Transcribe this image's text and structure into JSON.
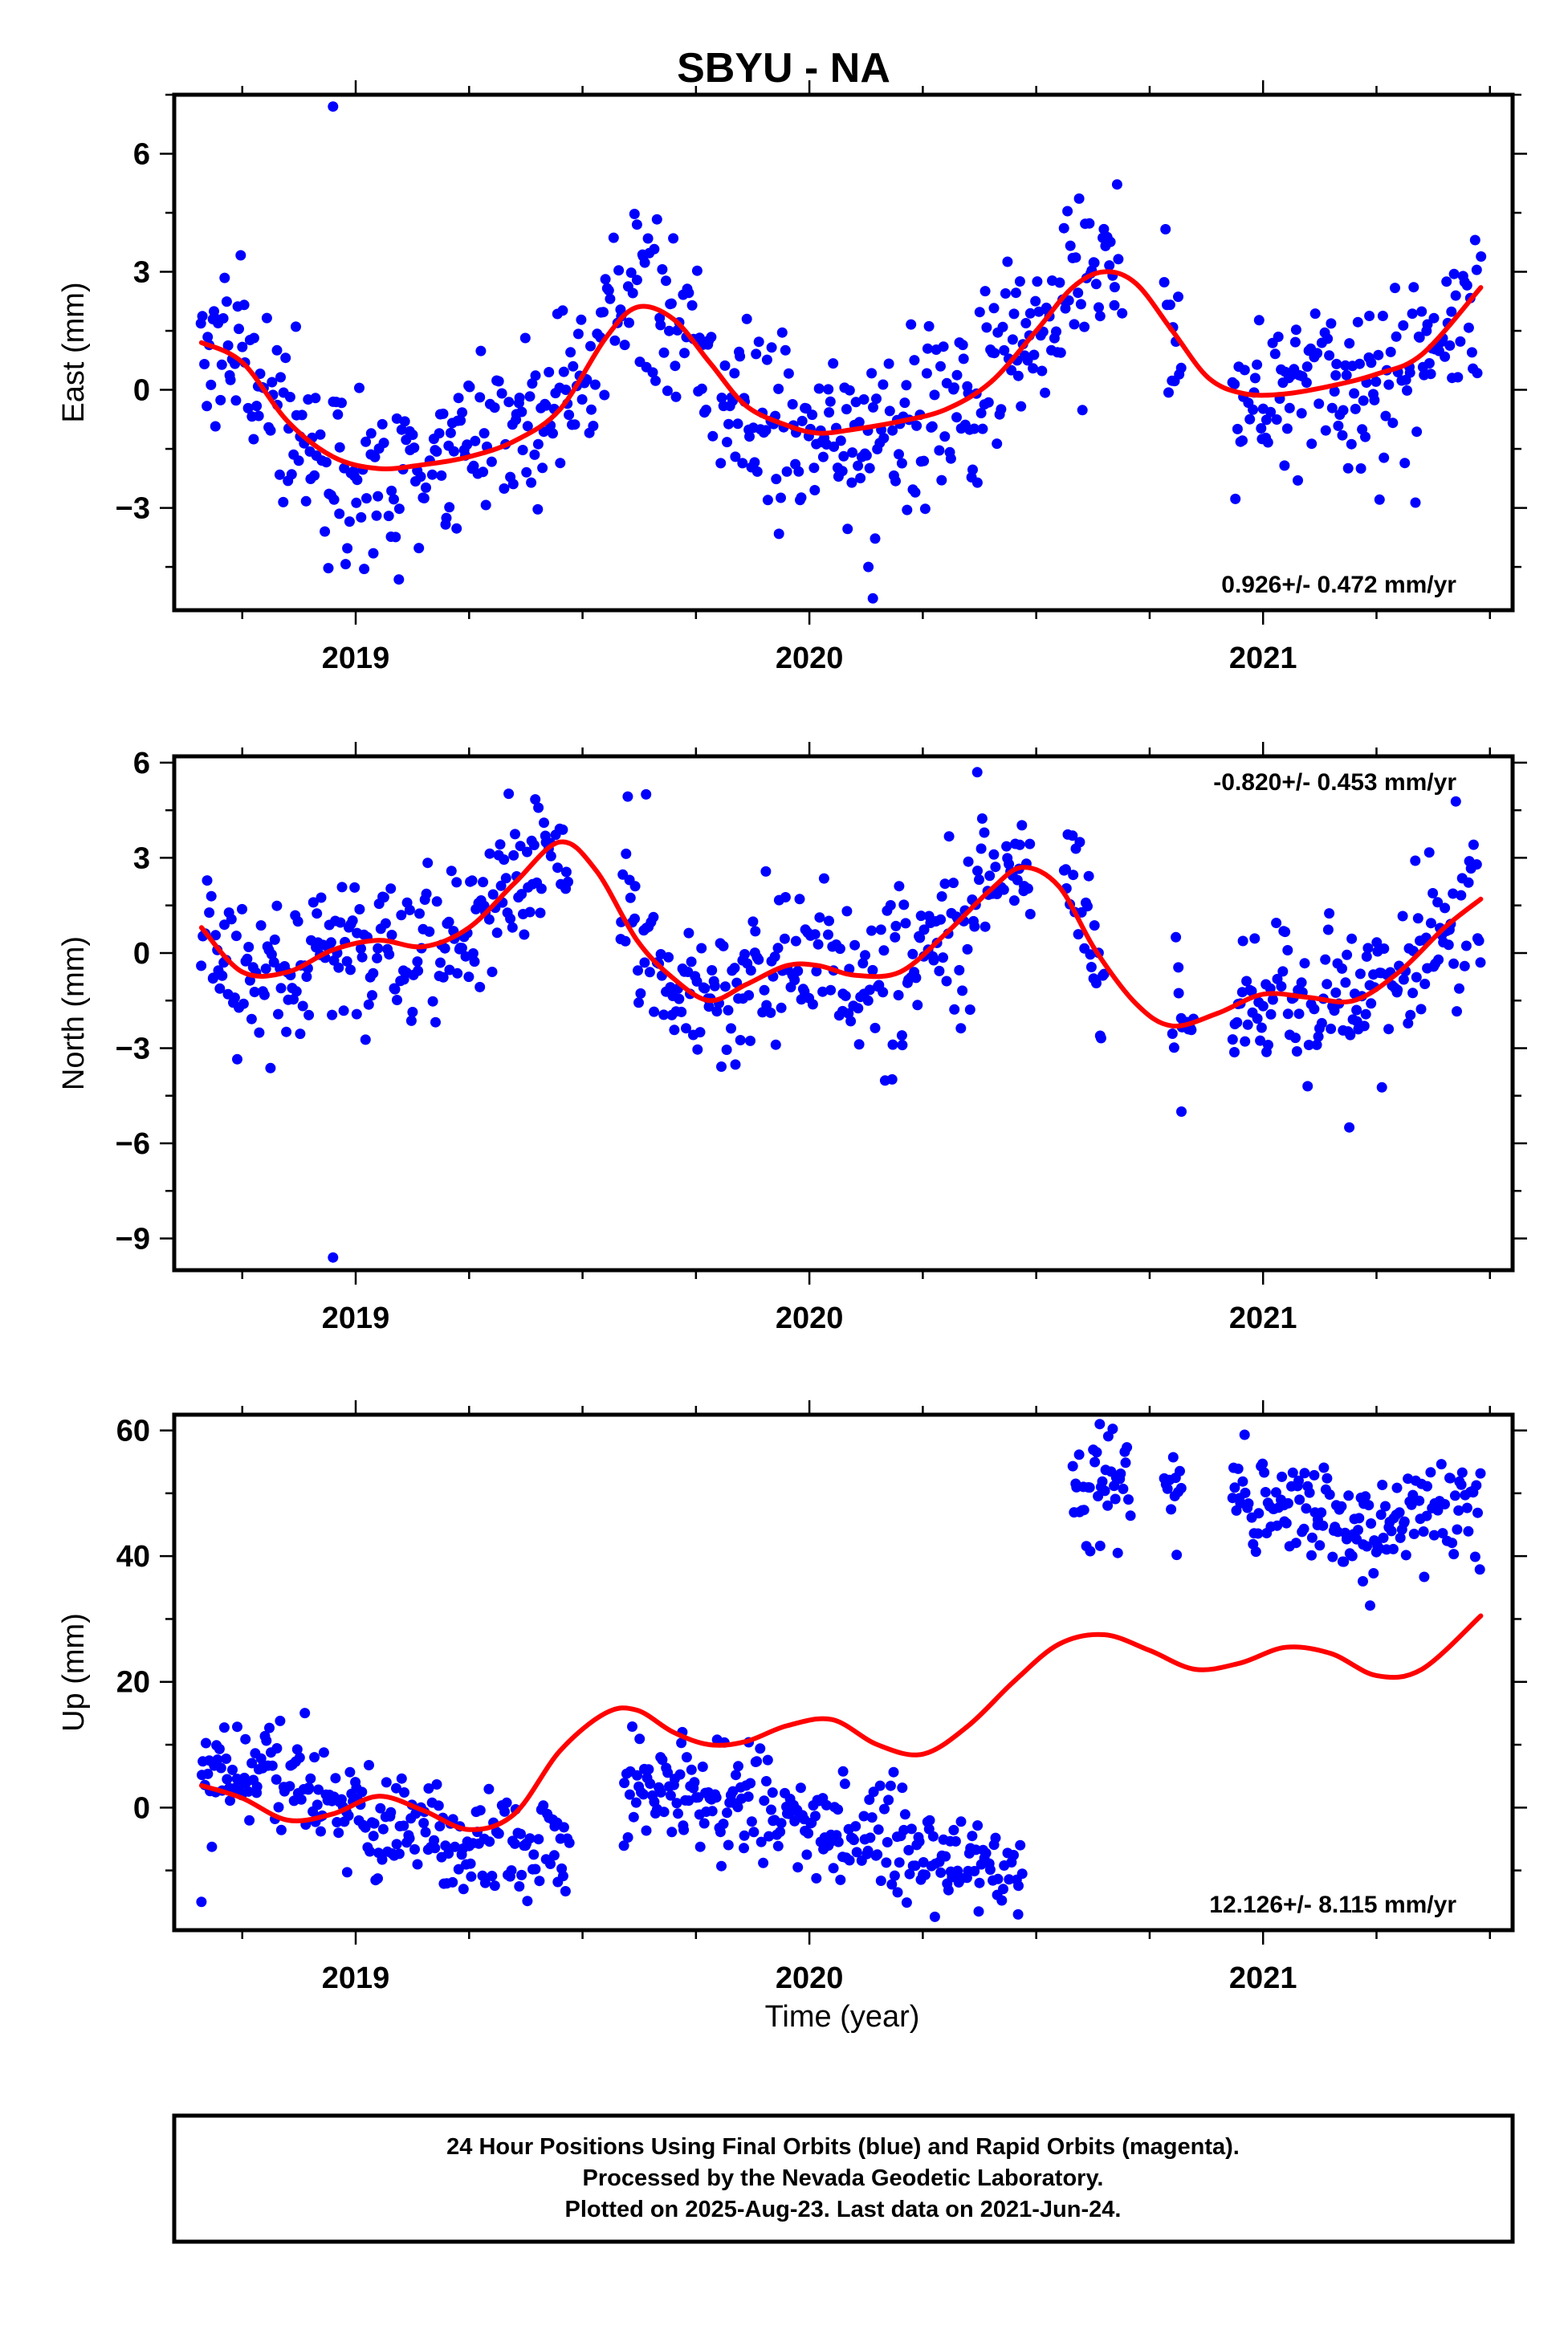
{
  "figure": {
    "title": "SBYU - NA",
    "xlabel": "Time (year)",
    "x_tick_labels": [
      "2019",
      "2020",
      "2021"
    ],
    "footer_lines": [
      "24 Hour Positions Using Final Orbits (blue) and Rapid Orbits (magenta).",
      "Processed by the Nevada Geodetic Laboratory.",
      "Plotted on 2025-Aug-23. Last data on 2021-Jun-24."
    ],
    "colors": {
      "points": "#0000ff",
      "fit": "#ff0000",
      "frame": "#000000"
    }
  },
  "chart_data": [
    {
      "type": "scatter",
      "ylabel": "East (mm)",
      "xlim": [
        2018.6,
        2021.55
      ],
      "ylim": [
        -5.6,
        7.5
      ],
      "yticks": [
        -3,
        0,
        3,
        6
      ],
      "ytick_labels": [
        "−3",
        "0",
        "3",
        "6"
      ],
      "rate_text": "0.926+/- 0.472 mm/yr",
      "rate_position": "bottom-right",
      "points": {
        "generator": "seeded-scatter-around-fit",
        "data_start": 2018.66,
        "data_end": 2021.48,
        "spread": 1.1,
        "gaps": [
          [
            2019.79,
            2019.8
          ],
          [
            2020.69,
            2020.78
          ],
          [
            2020.82,
            2020.93
          ]
        ],
        "outliers": [
          [
            2018.95,
            7.2
          ],
          [
            2020.14,
            -5.3
          ],
          [
            2020.13,
            -4.5
          ],
          [
            2019.62,
            4.2
          ]
        ]
      },
      "fit": {
        "x": [
          2018.66,
          2018.75,
          2018.85,
          2018.95,
          2019.05,
          2019.15,
          2019.25,
          2019.35,
          2019.45,
          2019.55,
          2019.62,
          2019.7,
          2019.78,
          2019.86,
          2019.95,
          2020.02,
          2020.1,
          2020.2,
          2020.3,
          2020.4,
          2020.5,
          2020.58,
          2020.65,
          2020.72,
          2020.8,
          2020.88,
          2020.96,
          2021.05,
          2021.15,
          2021.25,
          2021.35,
          2021.48
        ],
        "y": [
          1.2,
          0.7,
          -0.8,
          -1.7,
          -2.0,
          -1.9,
          -1.7,
          -1.3,
          -0.5,
          1.3,
          2.1,
          1.8,
          0.7,
          -0.4,
          -0.9,
          -1.1,
          -1.0,
          -0.8,
          -0.5,
          0.2,
          1.5,
          2.6,
          3.0,
          2.7,
          1.5,
          0.3,
          -0.1,
          -0.1,
          0.1,
          0.4,
          0.9,
          2.6
        ]
      }
    },
    {
      "type": "scatter",
      "ylabel": "North (mm)",
      "xlim": [
        2018.6,
        2021.55
      ],
      "ylim": [
        -10.0,
        6.2
      ],
      "yticks": [
        -9,
        -6,
        -3,
        0,
        3,
        6
      ],
      "ytick_labels": [
        "−9",
        "−6",
        "−3",
        "0",
        "3",
        "6"
      ],
      "rate_text": "-0.820+/- 0.453 mm/yr",
      "rate_position": "top-right",
      "points": {
        "generator": "seeded-scatter-around-fit",
        "data_start": 2018.66,
        "data_end": 2021.48,
        "spread": 1.2,
        "gaps": [
          [
            2019.47,
            2019.58
          ],
          [
            2020.49,
            2020.56
          ],
          [
            2020.65,
            2020.8
          ],
          [
            2020.85,
            2020.93
          ]
        ],
        "outliers": [
          [
            2018.95,
            -9.6
          ],
          [
            2019.64,
            5.0
          ],
          [
            2020.37,
            5.7
          ],
          [
            2020.58,
            3.7
          ],
          [
            2020.82,
            -5.0
          ],
          [
            2021.19,
            -5.5
          ]
        ]
      },
      "fit": {
        "x": [
          2018.66,
          2018.75,
          2018.85,
          2018.95,
          2019.05,
          2019.15,
          2019.25,
          2019.35,
          2019.45,
          2019.53,
          2019.62,
          2019.7,
          2019.78,
          2019.86,
          2019.95,
          2020.02,
          2020.1,
          2020.2,
          2020.3,
          2020.4,
          2020.47,
          2020.55,
          2020.63,
          2020.72,
          2020.8,
          2020.9,
          2021.0,
          2021.1,
          2021.2,
          2021.3,
          2021.4,
          2021.48
        ],
        "y": [
          0.8,
          -0.6,
          -0.6,
          0.1,
          0.4,
          0.2,
          0.8,
          2.2,
          3.5,
          2.6,
          0.4,
          -0.8,
          -1.5,
          -1.0,
          -0.4,
          -0.4,
          -0.7,
          -0.6,
          0.6,
          2.0,
          2.7,
          2.1,
          0.1,
          -1.6,
          -2.3,
          -1.9,
          -1.3,
          -1.4,
          -1.5,
          -0.6,
          0.8,
          1.7
        ]
      }
    },
    {
      "type": "scatter",
      "ylabel": "Up (mm)",
      "xlim": [
        2018.6,
        2021.55
      ],
      "ylim": [
        -19.5,
        62.5
      ],
      "yticks": [
        0,
        20,
        40,
        60
      ],
      "ytick_labels": [
        "0",
        "20",
        "40",
        "60"
      ],
      "rate_text": "12.126+/- 8.115 mm/yr",
      "rate_position": "bottom-right",
      "points": {
        "generator": "seeded-scatter-offset-segments",
        "spread": 4.2,
        "segments": [
          {
            "x": [
              2018.66,
              2018.8,
              2018.95,
              2019.1,
              2019.25,
              2019.4,
              2019.47
            ],
            "y": [
              5,
              6,
              0,
              -3,
              -7,
              -6,
              -8
            ]
          },
          {
            "x": [
              2019.59,
              2019.72,
              2019.9,
              2020.05,
              2020.2,
              2020.35,
              2020.47
            ],
            "y": [
              1,
              2,
              0,
              -3,
              -6,
              -8,
              -10
            ]
          },
          {
            "x": [
              2020.58,
              2020.7,
              2020.8,
              2020.9,
              2021.0,
              2021.1,
              2021.2,
              2021.3,
              2021.4,
              2021.48
            ],
            "y": [
              49,
              53,
              51,
              50,
              48,
              47,
              44,
              44,
              46,
              48
            ]
          }
        ],
        "gaps": [
          [
            2020.71,
            2020.78
          ],
          [
            2020.82,
            2020.93
          ]
        ],
        "outliers": [
          [
            2018.66,
            -15
          ],
          [
            2019.72,
            12
          ],
          [
            2020.64,
            61
          ],
          [
            2021.22,
            36
          ],
          [
            2020.46,
            -17
          ]
        ]
      },
      "fit": {
        "x": [
          2018.66,
          2018.75,
          2018.85,
          2018.95,
          2019.05,
          2019.15,
          2019.25,
          2019.35,
          2019.45,
          2019.55,
          2019.62,
          2019.7,
          2019.78,
          2019.86,
          2019.95,
          2020.05,
          2020.15,
          2020.25,
          2020.35,
          2020.45,
          2020.55,
          2020.65,
          2020.75,
          2020.85,
          2020.95,
          2021.05,
          2021.15,
          2021.25,
          2021.35,
          2021.48
        ],
        "y": [
          3.5,
          1.5,
          -2.0,
          -1.0,
          1.8,
          -0.5,
          -3.5,
          -1.0,
          9.0,
          15.0,
          15.5,
          12.0,
          10.0,
          10.5,
          13.0,
          14.0,
          10.0,
          8.5,
          13.0,
          20.0,
          26.0,
          27.5,
          25.0,
          22.0,
          23.0,
          25.5,
          24.5,
          21.0,
          22.0,
          30.5
        ]
      }
    }
  ]
}
